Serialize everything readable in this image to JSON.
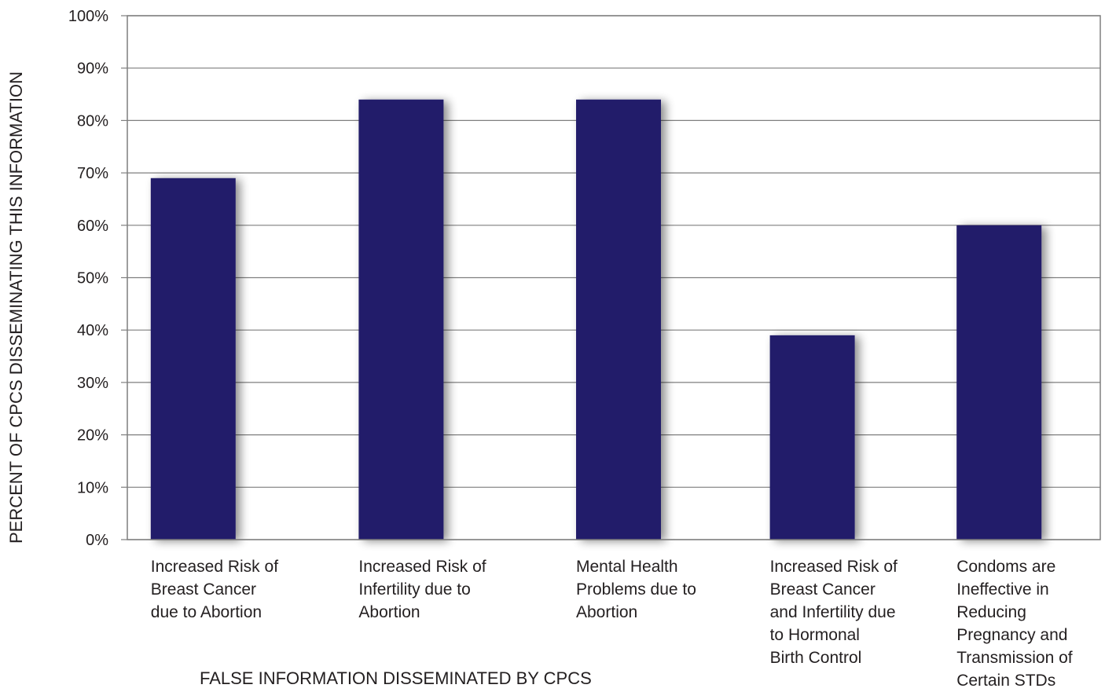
{
  "chart_data": {
    "type": "bar",
    "categories": [
      "Increased Risk of\nBreast Cancer\ndue to Abortion",
      "Increased Risk of\nInfertility due to\nAbortion",
      "Mental Health\nProblems due to\nAbortion",
      "Increased Risk of\nBreast Cancer\nand Infertility due\nto Hormonal\nBirth Control",
      "Condoms are\nIneffective in\nReducing\nPregnancy and\nTransmission of\nCertain STDs"
    ],
    "values": [
      69,
      84,
      84,
      39,
      60
    ],
    "ylim": [
      0,
      100
    ],
    "yticks": [
      "0%",
      "10%",
      "20%",
      "30%",
      "40%",
      "50%",
      "60%",
      "70%",
      "80%",
      "90%",
      "100%"
    ],
    "xlabel": "FALSE INFORMATION DISSEMINATED BY CPCS",
    "ylabel": "PERCENT OF CPCS DISSEMINATING THIS INFORMATION",
    "grid": true,
    "bar_color": "#241f6b",
    "grid_color": "#7f7f7f"
  }
}
